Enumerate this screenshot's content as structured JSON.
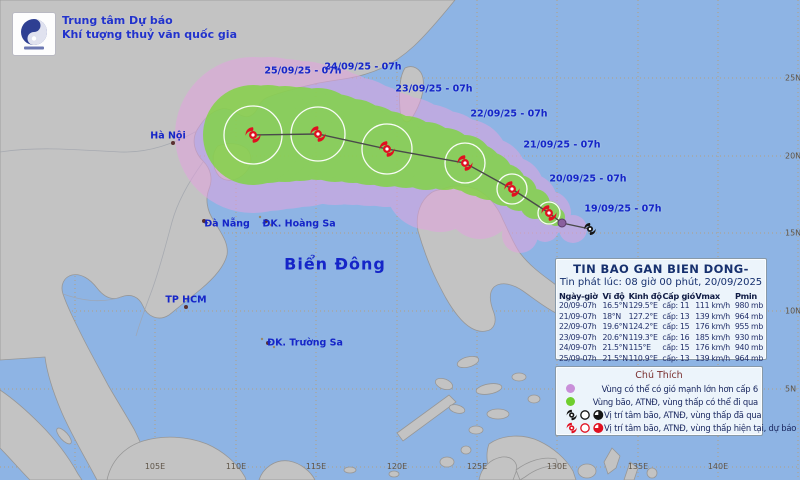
{
  "header": {
    "org_line1": "Trung tâm Dự báo",
    "org_line2": "Khí tượng thuỷ văn quốc gia"
  },
  "map": {
    "sea_label": "Biển Đông",
    "cities": [
      "Hà Nội",
      "Đà Nẵng",
      "TP HCM",
      "ĐK. Hoàng Sa",
      "ĐK. Trường Sa"
    ],
    "track_labels": [
      "25/09/25 - 07h",
      "24/09/25 - 07h",
      "23/09/25 - 07h",
      "22/09/25 - 07h",
      "21/09/25 - 07h",
      "20/09/25 - 07h",
      "19/09/25 - 07h"
    ],
    "lon_ticks": [
      "105E",
      "110E",
      "115E",
      "120E",
      "125E",
      "130E",
      "135E",
      "140E"
    ],
    "lat_ticks": [
      "25N",
      "20N",
      "15N",
      "10N",
      "5N"
    ]
  },
  "bulletin": {
    "title": "TIN BAO GAN BIEN DONG-",
    "issued": "Tin phát lúc: 08 giờ 00 phút, 20/09/2025",
    "columns": [
      "Ngày-giờ",
      "Vĩ độ",
      "Kinh độ",
      "Cấp gió",
      "Vmax",
      "Pmin"
    ],
    "rows": [
      [
        "20/09-07h",
        "16.5°N",
        "129.5°E",
        "cấp: 11",
        "111 km/h",
        "980 mb"
      ],
      [
        "21/09-07h",
        "18°N",
        "127.2°E",
        "cấp: 13",
        "139 km/h",
        "964 mb"
      ],
      [
        "22/09-07h",
        "19.6°N",
        "124.2°E",
        "cấp: 15",
        "176 km/h",
        "955 mb"
      ],
      [
        "23/09-07h",
        "20.6°N",
        "119.3°E",
        "cấp: 16",
        "185 km/h",
        "930 mb"
      ],
      [
        "24/09-07h",
        "21.5°N",
        "115°E",
        "cấp: 15",
        "176 km/h",
        "940 mb"
      ],
      [
        "25/09-07h",
        "21.5°N",
        "110.9°E",
        "cấp: 13",
        "139 km/h",
        "964 mb"
      ]
    ]
  },
  "legend": {
    "title": "Chú Thích",
    "items": [
      {
        "symbol": "wind-area-dot",
        "label": "Vùng có thể có gió mạnh lớn hơn cấp 6"
      },
      {
        "symbol": "pass-area-dot",
        "label": "Vùng bão, ATNĐ, vùng thấp có thể đi qua"
      },
      {
        "symbol": "past-position-icons",
        "label": "Vị trí tâm bão, ATNĐ, vùng thấp đã qua"
      },
      {
        "symbol": "current-forecast-icons",
        "label": "Vị trí tâm bão, ATNĐ, vùng thấp hiện tại, dự báo"
      }
    ]
  },
  "colors": {
    "sea": "#8eb4e4",
    "land": "#c3c3c3",
    "wind_area_pink": "#e2a4e0",
    "pass_area_green": "#7ed63e",
    "storm_red": "#e01020",
    "storm_black": "#151515",
    "label_blue": "#1525c8",
    "panel_bg": "#ecf4fb"
  }
}
